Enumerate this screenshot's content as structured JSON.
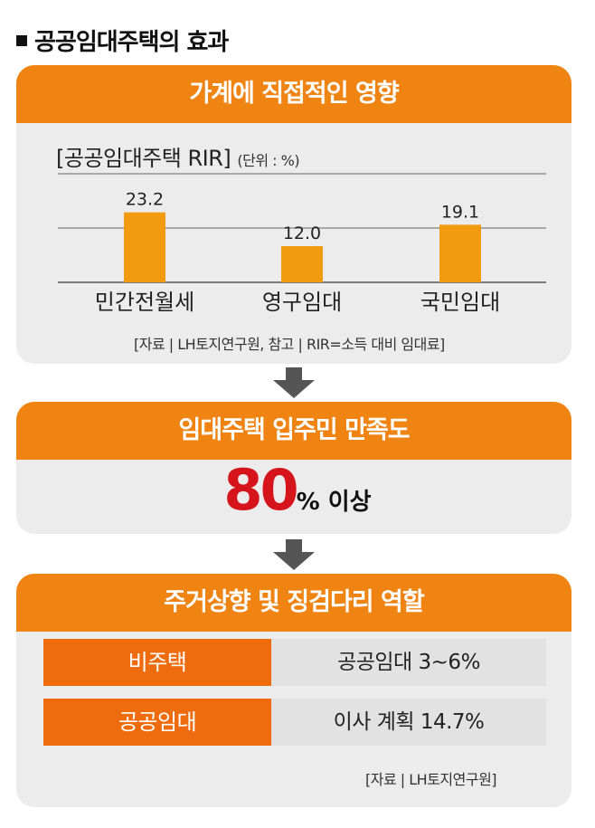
{
  "title": "공공임대주택의 효과",
  "section1": {
    "heading": "가계에 직접적인 영향",
    "chart_title": "[공공임대주택 RIR]",
    "unit": "(단위 : %)",
    "source": "[자료 | LH토지연구원, 참고 | RIR=소득 대비 임대료]"
  },
  "chart_data": {
    "type": "bar",
    "title": "[공공임대주택 RIR]",
    "unit": "(단위 : %)",
    "categories": [
      "민간전월세",
      "영구임대",
      "국민임대"
    ],
    "values": [
      23.2,
      12.0,
      19.1
    ],
    "value_labels": [
      "23.2",
      "12.0",
      "19.1"
    ],
    "ylim": [
      0,
      36
    ],
    "grid": true,
    "bar_color": "#f29a10"
  },
  "section2": {
    "heading": "임대주택 입주민 만족도",
    "value": "80",
    "suffix": "% 이상"
  },
  "section3": {
    "heading": "주거상향 및 징검다리 역할",
    "rows": [
      {
        "label": "비주택",
        "value": "공공임대 3~6%"
      },
      {
        "label": "공공임대",
        "value": "이사 계획 14.7%"
      }
    ],
    "source": "[자료 | LH토지연구원]"
  },
  "colors": {
    "banner": "#ef8413",
    "panel": "#ececec",
    "accent_red": "#d6141c",
    "row_label": "#ef6c0e",
    "arrow": "#555555"
  }
}
